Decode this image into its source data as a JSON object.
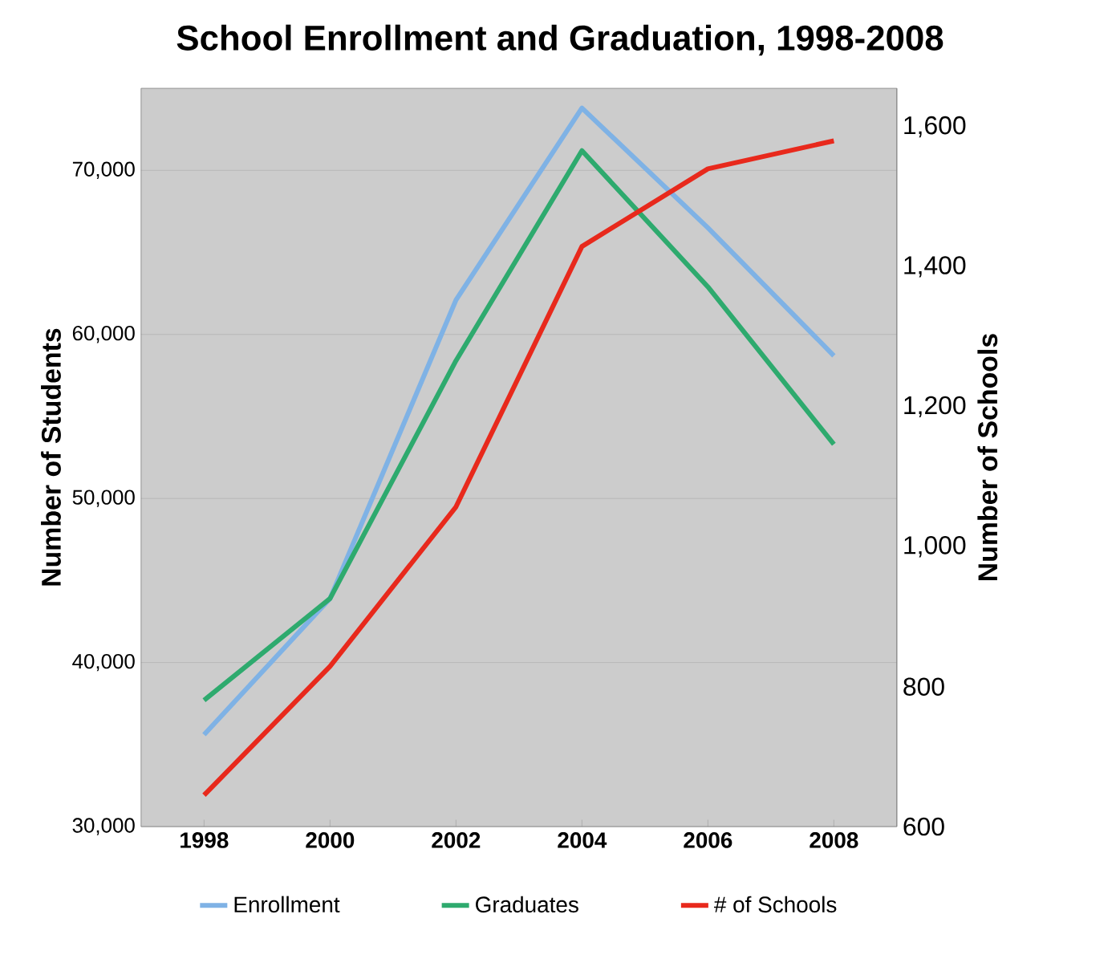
{
  "chart_data": {
    "type": "line",
    "title": "School Enrollment and Graduation, 1998-2008",
    "ylabel": "Number of Students",
    "y2label": "Number of Schools",
    "categories": [
      "1998",
      "2000",
      "2002",
      "2004",
      "2006",
      "2008"
    ],
    "series": [
      {
        "name": "Enrollment",
        "color": "#7fb2e5",
        "values": [
          35600,
          43900,
          62100,
          73800,
          66500,
          58700
        ]
      },
      {
        "name": "Graduates",
        "color": "#2eaa6e",
        "values": [
          37700,
          43900,
          58400,
          71200,
          62900,
          53300
        ]
      },
      {
        "name": "# of Schools",
        "color": "#e8291c",
        "axis": "y2",
        "values": [
          645,
          829,
          1057,
          1429,
          1540,
          1580
        ]
      }
    ],
    "ylim": [
      30000,
      75000
    ],
    "yticks": [
      {
        "value": 30000,
        "label": "30,000"
      },
      {
        "value": 40000,
        "label": "40,000"
      },
      {
        "value": 50000,
        "label": "50,000"
      },
      {
        "value": 60000,
        "label": "60,000"
      },
      {
        "value": 70000,
        "label": "70,000"
      }
    ],
    "y2lim": [
      600,
      1655
    ],
    "y2ticks": [
      600,
      800,
      {
        "value": 1000,
        "label": "1,000"
      },
      {
        "value": 1200,
        "label": "1,200"
      },
      {
        "value": 1400,
        "label": "1,400"
      },
      {
        "value": 1600,
        "label": "1,600"
      }
    ],
    "grid": "y",
    "legend": "bottom",
    "marker": "none",
    "line_style": "solid"
  }
}
